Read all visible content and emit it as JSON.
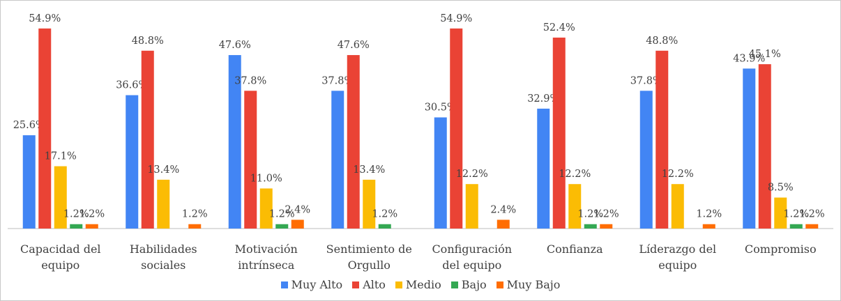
{
  "chart_data": {
    "type": "bar",
    "categories": [
      "Capacidad del equipo",
      "Habilidades sociales",
      "Motivación intrínseca",
      "Sentimiento de Orgullo",
      "Configuración del equipo",
      "Confianza",
      "Líderazgo del equipo",
      "Compromiso"
    ],
    "series": [
      {
        "name": "Muy Alto",
        "color": "#4285f4",
        "values": [
          25.6,
          36.6,
          47.6,
          37.8,
          30.5,
          32.9,
          37.8,
          43.9
        ],
        "value_labels": [
          "25.6%",
          "36.6%",
          "47.6%",
          "37.8%",
          "30.5%",
          "32.9%",
          "37.8%",
          "43.9%"
        ]
      },
      {
        "name": "Alto",
        "color": "#ea4335",
        "values": [
          54.9,
          48.8,
          37.8,
          47.6,
          54.9,
          52.4,
          48.8,
          45.1
        ],
        "value_labels": [
          "54.9%",
          "48.8%",
          "37.8%",
          "47.6%",
          "54.9%",
          "52.4%",
          "48.8%",
          "45.1%"
        ]
      },
      {
        "name": "Medio",
        "color": "#fbbc04",
        "values": [
          17.1,
          13.4,
          11.0,
          13.4,
          12.2,
          12.2,
          12.2,
          8.5
        ],
        "value_labels": [
          "17.1%",
          "13.4%",
          "11.0%",
          "13.4%",
          "12.2%",
          "12.2%",
          "12.2%",
          "8.5%"
        ]
      },
      {
        "name": "Bajo",
        "color": "#34a853",
        "values": [
          1.2,
          null,
          1.2,
          1.2,
          null,
          1.2,
          null,
          1.2
        ],
        "value_labels": [
          "1.2%",
          null,
          "1.2%",
          "1.2%",
          null,
          "1.2%",
          null,
          "1.2%"
        ]
      },
      {
        "name": "Muy Bajo",
        "color": "#ff6d01",
        "values": [
          1.2,
          1.2,
          2.4,
          null,
          2.4,
          1.2,
          1.2,
          1.2
        ],
        "value_labels": [
          "1.2%",
          "1.2%",
          "2.4%",
          null,
          "2.4%",
          "1.2%",
          "1.2%",
          "1.2%"
        ]
      }
    ],
    "legend": "bottom"
  }
}
